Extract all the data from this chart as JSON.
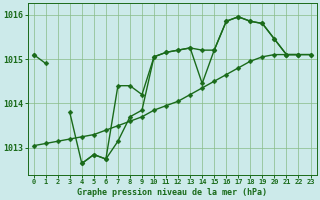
{
  "title": "Graphe pression niveau de la mer (hPa)",
  "hours": [
    0,
    1,
    2,
    3,
    4,
    5,
    6,
    7,
    8,
    9,
    10,
    11,
    12,
    13,
    14,
    15,
    16,
    17,
    18,
    19,
    20,
    21,
    22,
    23
  ],
  "line_main": [
    1015.1,
    1014.9,
    null,
    1013.8,
    1012.65,
    1012.85,
    1012.75,
    1013.15,
    1013.7,
    1013.85,
    1015.05,
    1015.15,
    1015.2,
    1015.25,
    1015.2,
    1015.2,
    1015.85,
    1015.95,
    1015.85,
    1015.8,
    1015.45,
    1015.1,
    1015.1,
    1015.1
  ],
  "line_high": [
    1015.1,
    null,
    null,
    null,
    1012.65,
    1012.85,
    1012.75,
    1014.4,
    1014.4,
    1014.2,
    1015.05,
    1015.15,
    1015.2,
    1015.25,
    1014.45,
    1015.2,
    1015.85,
    1015.95,
    1015.85,
    1015.8,
    1015.45,
    1015.1,
    1015.1,
    null
  ],
  "line_low": [
    1013.05,
    1013.1,
    1013.15,
    1013.2,
    1013.25,
    1013.3,
    1013.4,
    1013.5,
    1013.6,
    1013.7,
    1013.85,
    1013.95,
    1014.05,
    1014.2,
    1014.35,
    1014.5,
    1014.65,
    1014.8,
    1014.95,
    1015.05,
    1015.1,
    1015.1,
    1015.1,
    1015.1
  ],
  "ylim": [
    1012.4,
    1016.25
  ],
  "yticks": [
    1013,
    1014,
    1015,
    1016
  ],
  "line_color": "#1a6b1a",
  "bg_color": "#cceaea",
  "grid_color": "#88bb88",
  "marker": "D",
  "marker_size": 2.5,
  "line_width": 1.0
}
